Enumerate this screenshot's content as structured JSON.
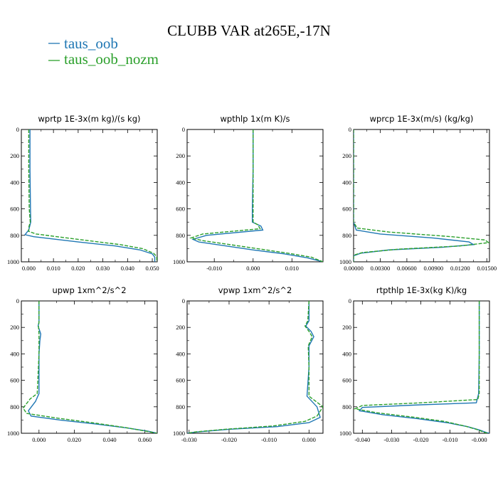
{
  "figure": {
    "title": "CLUBB VAR at265E,-17N",
    "legend": [
      {
        "label": "taus_oob",
        "color": "#1f77b4",
        "dash": "solid"
      },
      {
        "label": "taus_oob_nozm",
        "color": "#2ca02c",
        "dash": "dashed"
      }
    ]
  },
  "chart_data": [
    {
      "type": "line",
      "title": "wprtp   1E-3x(m kg)/(s kg)",
      "xlim": [
        -0.003,
        0.052
      ],
      "ylim": [
        1000,
        0
      ],
      "xticks": [
        0.0,
        0.01,
        0.02,
        0.03,
        0.04,
        0.05
      ],
      "xtick_labels": [
        "0.000",
        "0.010",
        "0.020",
        "0.030",
        "0.040",
        "0.050"
      ],
      "yticks": [
        0,
        200,
        400,
        600,
        800,
        1000
      ],
      "series": [
        {
          "name": "taus_oob",
          "x": [
            0.0005,
            0.0005,
            0.0007,
            0.0008,
            0.0,
            -0.0015,
            0.002,
            0.02,
            0.035,
            0.045,
            0.05,
            0.051,
            0.051
          ],
          "y": [
            0,
            300,
            600,
            700,
            760,
            795,
            810,
            850,
            880,
            910,
            940,
            965,
            1000
          ]
        },
        {
          "name": "taus_oob_nozm",
          "x": [
            0.0,
            0.0,
            0.0002,
            0.0006,
            0.0,
            0.0,
            0.003,
            0.022,
            0.037,
            0.046,
            0.0505,
            0.0518,
            0.0518
          ],
          "y": [
            0,
            300,
            600,
            700,
            740,
            770,
            790,
            835,
            870,
            900,
            935,
            960,
            1000
          ]
        }
      ]
    },
    {
      "type": "line",
      "title": "wpthlp   1x(m K)/s",
      "xlim": [
        -0.017,
        0.018
      ],
      "ylim": [
        1000,
        0
      ],
      "xticks": [
        -0.01,
        0.0,
        0.01
      ],
      "xtick_labels": [
        "-0.010",
        "0.000",
        "0.010"
      ],
      "yticks": [
        0,
        200,
        400,
        600,
        800,
        1000
      ],
      "series": [
        {
          "name": "taus_oob",
          "x": [
            0.0,
            0.0,
            -0.0002,
            -0.0002,
            0.002,
            0.0025,
            -0.012,
            -0.0155,
            -0.014,
            -0.007,
            0.0,
            0.008,
            0.014,
            0.018
          ],
          "y": [
            0,
            300,
            600,
            700,
            730,
            760,
            800,
            830,
            850,
            880,
            910,
            940,
            970,
            1000
          ]
        },
        {
          "name": "taus_oob_nozm",
          "x": [
            0.0,
            0.0,
            0.0,
            0.0,
            0.0012,
            0.0018,
            -0.013,
            -0.016,
            -0.013,
            -0.006,
            0.001,
            0.009,
            0.015,
            0.018
          ],
          "y": [
            0,
            300,
            600,
            700,
            720,
            750,
            790,
            820,
            840,
            870,
            900,
            935,
            965,
            1000
          ]
        }
      ]
    },
    {
      "type": "line",
      "title": "wprcp   1E-3x(m/s) (kg/kg)",
      "xlim": [
        0.0,
        0.0153
      ],
      "ylim": [
        1000,
        0
      ],
      "xticks": [
        0.0,
        0.003,
        0.006,
        0.009,
        0.012,
        0.015
      ],
      "xtick_labels": [
        "0.00000",
        "0.00300",
        "0.00600",
        "0.00900",
        "0.01200",
        "0.01500"
      ],
      "yticks": [
        0,
        200,
        400,
        600,
        800,
        1000
      ],
      "series": [
        {
          "name": "taus_oob",
          "x": [
            0.0,
            0.0,
            0.0,
            0.0003,
            0.003,
            0.009,
            0.013,
            0.0135,
            0.01,
            0.004,
            0.0008,
            0.0,
            0.0
          ],
          "y": [
            0,
            400,
            700,
            760,
            790,
            820,
            850,
            870,
            890,
            910,
            935,
            955,
            1000
          ]
        },
        {
          "name": "taus_oob_nozm",
          "x": [
            0.0,
            0.0,
            0.0,
            0.0004,
            0.004,
            0.011,
            0.0148,
            0.0152,
            0.012,
            0.005,
            0.001,
            0.0,
            0.0
          ],
          "y": [
            0,
            400,
            700,
            745,
            775,
            810,
            835,
            855,
            880,
            905,
            930,
            950,
            1000
          ]
        }
      ]
    },
    {
      "type": "line",
      "title": "upwp   1xm^2/s^2",
      "xlim": [
        -0.01,
        0.067
      ],
      "ylim": [
        1000,
        0
      ],
      "xticks": [
        0.0,
        0.02,
        0.04,
        0.06
      ],
      "xtick_labels": [
        "0.000",
        "0.020",
        "0.040",
        "0.060"
      ],
      "yticks": [
        0,
        200,
        400,
        600,
        800,
        1000
      ],
      "series": [
        {
          "name": "taus_oob",
          "x": [
            0.0,
            0.0,
            -0.0005,
            0.001,
            0.0005,
            0.0,
            0.0,
            -0.002,
            -0.006,
            -0.0045,
            0.012,
            0.032,
            0.05,
            0.062,
            0.067
          ],
          "y": [
            0,
            160,
            190,
            250,
            300,
            400,
            700,
            760,
            830,
            870,
            900,
            930,
            960,
            985,
            1000
          ]
        },
        {
          "name": "taus_oob_nozm",
          "x": [
            0.0,
            0.0,
            -0.0003,
            0.0,
            0.0,
            0.0,
            -0.001,
            -0.005,
            -0.009,
            -0.007,
            0.01,
            0.03,
            0.048,
            0.061,
            0.067
          ],
          "y": [
            0,
            160,
            190,
            250,
            300,
            400,
            700,
            740,
            810,
            850,
            885,
            920,
            955,
            985,
            1000
          ]
        }
      ]
    },
    {
      "type": "line",
      "title": "vpwp   1xm^2/s^2",
      "xlim": [
        -0.0305,
        0.0035
      ],
      "ylim": [
        1000,
        0
      ],
      "xticks": [
        -0.03,
        -0.02,
        -0.01,
        0.0
      ],
      "xtick_labels": [
        "-0.030",
        "-0.020",
        "-0.010",
        "0.000"
      ],
      "yticks": [
        0,
        200,
        400,
        600,
        800,
        1000
      ],
      "series": [
        {
          "name": "taus_oob",
          "x": [
            0.0,
            0.0,
            -0.0008,
            0.0005,
            0.0012,
            0.0,
            0.0,
            -0.0005,
            0.002,
            0.0028,
            0.0,
            -0.008,
            -0.02,
            -0.028,
            -0.0305
          ],
          "y": [
            0,
            150,
            190,
            230,
            270,
            340,
            500,
            720,
            800,
            880,
            920,
            950,
            970,
            990,
            1000
          ]
        },
        {
          "name": "taus_oob_nozm",
          "x": [
            0.0,
            -0.0003,
            -0.001,
            0.0,
            0.0008,
            -0.0002,
            0.0,
            0.0,
            0.0035,
            0.002,
            -0.001,
            -0.009,
            -0.021,
            -0.0285,
            -0.0305
          ],
          "y": [
            0,
            150,
            190,
            230,
            270,
            340,
            500,
            720,
            800,
            870,
            910,
            945,
            970,
            990,
            1000
          ]
        }
      ]
    },
    {
      "type": "line",
      "title": "rtpthlp   1E-3x(kg K)/kg",
      "xlim": [
        -0.043,
        0.0035
      ],
      "ylim": [
        1000,
        0
      ],
      "xticks": [
        -0.04,
        -0.03,
        -0.02,
        -0.01,
        0.0
      ],
      "xtick_labels": [
        "-0.040",
        "-0.030",
        "-0.020",
        "-0.010",
        "-0.000"
      ],
      "yticks": [
        0,
        200,
        400,
        600,
        800,
        1000
      ],
      "series": [
        {
          "name": "taus_oob",
          "x": [
            0.0,
            0.0,
            -0.0002,
            -0.001,
            -0.02,
            -0.04,
            -0.041,
            -0.033,
            -0.021,
            -0.011,
            -0.004,
            0.0,
            0.0025,
            0.0035
          ],
          "y": [
            0,
            400,
            700,
            770,
            785,
            805,
            830,
            860,
            890,
            920,
            950,
            975,
            995,
            1000
          ]
        },
        {
          "name": "taus_oob_nozm",
          "x": [
            0.0,
            0.0,
            0.0,
            -0.0005,
            -0.02,
            -0.04,
            -0.0425,
            -0.035,
            -0.022,
            -0.012,
            -0.005,
            -0.001,
            0.002,
            0.003
          ],
          "y": [
            0,
            400,
            700,
            745,
            770,
            790,
            815,
            845,
            880,
            910,
            945,
            970,
            995,
            1000
          ]
        }
      ]
    }
  ]
}
